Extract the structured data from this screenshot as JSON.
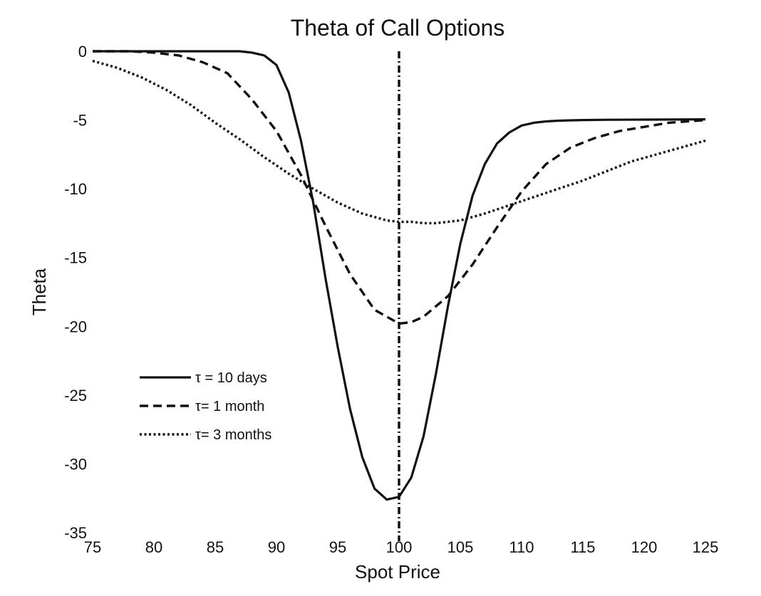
{
  "chart_data": {
    "type": "line",
    "title": "Theta of Call Options",
    "xlabel": "Spot Price",
    "ylabel": "Theta",
    "xlim": [
      75,
      125
    ],
    "ylim": [
      -35,
      0
    ],
    "xticks": [
      75,
      80,
      85,
      90,
      95,
      100,
      105,
      110,
      115,
      120,
      125
    ],
    "yticks": [
      0,
      -5,
      -10,
      -15,
      -20,
      -25,
      -30,
      -35
    ],
    "grid": false,
    "legend_position": "lower-left",
    "reference_line": {
      "x": 100,
      "style": "dash-dot"
    },
    "series": [
      {
        "name": "τ = 10 days",
        "style": "solid",
        "x": [
          75,
          80,
          85,
          87,
          88,
          89,
          90,
          91,
          92,
          93,
          94,
          95,
          96,
          97,
          98,
          99,
          100,
          101,
          102,
          103,
          104,
          105,
          106,
          107,
          108,
          109,
          110,
          111,
          112,
          113,
          114,
          115,
          117,
          120,
          125
        ],
        "y": [
          0,
          0,
          0,
          0,
          -0.1,
          -0.3,
          -1.0,
          -3.0,
          -6.5,
          -11.0,
          -16.5,
          -21.5,
          -26.0,
          -29.5,
          -31.8,
          -32.6,
          -32.4,
          -31.0,
          -28.0,
          -23.5,
          -18.5,
          -14.0,
          -10.5,
          -8.2,
          -6.7,
          -5.9,
          -5.4,
          -5.2,
          -5.1,
          -5.05,
          -5.02,
          -5.0,
          -4.98,
          -4.97,
          -4.95
        ]
      },
      {
        "name": "τ= 1 month",
        "style": "dashed",
        "x": [
          75,
          78,
          80,
          82,
          84,
          86,
          88,
          90,
          92,
          94,
          96,
          98,
          100,
          101,
          102,
          104,
          106,
          108,
          110,
          112,
          114,
          116,
          118,
          120,
          122,
          125
        ],
        "y": [
          0,
          0,
          -0.1,
          -0.3,
          -0.8,
          -1.6,
          -3.5,
          -5.8,
          -9.0,
          -12.7,
          -16.2,
          -18.8,
          -19.8,
          -19.7,
          -19.3,
          -17.8,
          -15.5,
          -12.8,
          -10.2,
          -8.2,
          -7.0,
          -6.3,
          -5.8,
          -5.5,
          -5.2,
          -5.0
        ]
      },
      {
        "name": "τ= 3 months",
        "style": "dotted",
        "x": [
          75,
          77,
          79,
          81,
          83,
          85,
          87,
          89,
          91,
          93,
          95,
          97,
          99,
          100,
          101,
          102,
          103,
          105,
          107,
          109,
          111,
          113,
          115,
          117,
          119,
          121,
          123,
          125
        ],
        "y": [
          -0.7,
          -1.2,
          -1.9,
          -2.8,
          -3.9,
          -5.2,
          -6.4,
          -7.7,
          -8.9,
          -10.0,
          -11.0,
          -11.8,
          -12.3,
          -12.4,
          -12.4,
          -12.5,
          -12.5,
          -12.3,
          -11.8,
          -11.2,
          -10.6,
          -10.0,
          -9.4,
          -8.7,
          -8.0,
          -7.5,
          -7.0,
          -6.5
        ]
      }
    ]
  }
}
